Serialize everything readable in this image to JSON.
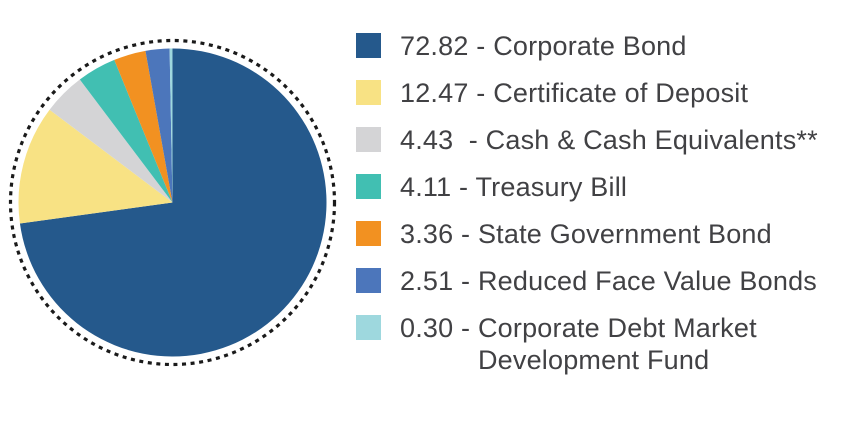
{
  "colors": {
    "background": "#FFFFFF",
    "text": "#414144",
    "ring": "#1A1A1A"
  },
  "chart_data": {
    "type": "pie",
    "title": "",
    "start_angle_deg": 0,
    "direction": "clockwise",
    "donut": false,
    "ring_style": "dotted",
    "legend_position": "right",
    "slices": [
      {
        "label": "Corporate Bond",
        "value": 72.82,
        "color": "#25598C"
      },
      {
        "label": "Certificate of Deposit",
        "value": 12.47,
        "color": "#F8E284"
      },
      {
        "label": "Cash & Cash Equivalents**",
        "value": 4.43,
        "color": "#D4D4D6"
      },
      {
        "label": "Treasury Bill",
        "value": 4.11,
        "color": "#41BFB2"
      },
      {
        "label": "State Government Bond",
        "value": 3.36,
        "color": "#F29121"
      },
      {
        "label": "Reduced Face Value Bonds",
        "value": 2.51,
        "color": "#4C76BB"
      },
      {
        "label": "Corporate Debt Market Development Fund",
        "value": 0.3,
        "color": "#9ED8DE"
      }
    ]
  },
  "legend": {
    "items": [
      {
        "value": "72.82",
        "sep": " - ",
        "name": "Corporate Bond"
      },
      {
        "value": "12.47",
        "sep": " - ",
        "name": "Certificate of Deposit"
      },
      {
        "value": "4.43",
        "sep": "  - ",
        "name": "Cash & Cash Equivalents**"
      },
      {
        "value": "4.11",
        "sep": " - ",
        "name": "Treasury Bill"
      },
      {
        "value": "3.36",
        "sep": " - ",
        "name": "State Government Bond"
      },
      {
        "value": "2.51",
        "sep": " - ",
        "name": "Reduced Face Value Bonds"
      },
      {
        "value": "0.30",
        "sep": " - ",
        "name": "Corporate Debt Market Development Fund"
      }
    ]
  }
}
